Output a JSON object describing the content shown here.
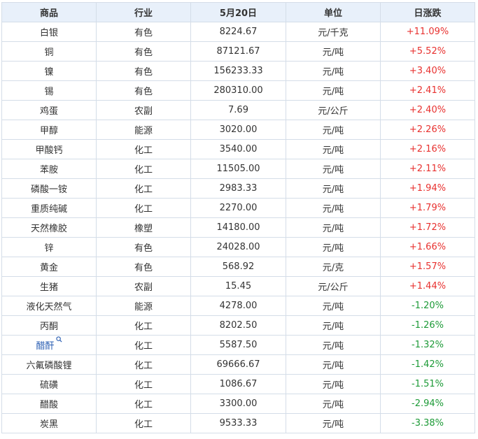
{
  "colors": {
    "up": "#e8312f",
    "down": "#1d9a37",
    "link": "#2b5fb3",
    "header_bg": "#e8f0fa",
    "border": "#d4dde8"
  },
  "table": {
    "headers": [
      "商品",
      "行业",
      "5月20日",
      "单位",
      "日涨跌"
    ],
    "rows": [
      {
        "name": "白银",
        "industry": "有色",
        "price": "8224.67",
        "unit": "元/千克",
        "change": "+11.09%"
      },
      {
        "name": "铜",
        "industry": "有色",
        "price": "87121.67",
        "unit": "元/吨",
        "change": "+5.52%"
      },
      {
        "name": "镍",
        "industry": "有色",
        "price": "156233.33",
        "unit": "元/吨",
        "change": "+3.40%"
      },
      {
        "name": "锡",
        "industry": "有色",
        "price": "280310.00",
        "unit": "元/吨",
        "change": "+2.41%"
      },
      {
        "name": "鸡蛋",
        "industry": "农副",
        "price": "7.69",
        "unit": "元/公斤",
        "change": "+2.40%"
      },
      {
        "name": "甲醇",
        "industry": "能源",
        "price": "3020.00",
        "unit": "元/吨",
        "change": "+2.26%"
      },
      {
        "name": "甲酸钙",
        "industry": "化工",
        "price": "3540.00",
        "unit": "元/吨",
        "change": "+2.16%"
      },
      {
        "name": "苯胺",
        "industry": "化工",
        "price": "11505.00",
        "unit": "元/吨",
        "change": "+2.11%"
      },
      {
        "name": "磷酸一铵",
        "industry": "化工",
        "price": "2983.33",
        "unit": "元/吨",
        "change": "+1.94%"
      },
      {
        "name": "重质纯碱",
        "industry": "化工",
        "price": "2270.00",
        "unit": "元/吨",
        "change": "+1.79%"
      },
      {
        "name": "天然橡胶",
        "industry": "橡塑",
        "price": "14180.00",
        "unit": "元/吨",
        "change": "+1.72%"
      },
      {
        "name": "锌",
        "industry": "有色",
        "price": "24028.00",
        "unit": "元/吨",
        "change": "+1.66%"
      },
      {
        "name": "黄金",
        "industry": "有色",
        "price": "568.92",
        "unit": "元/克",
        "change": "+1.57%"
      },
      {
        "name": "生猪",
        "industry": "农副",
        "price": "15.45",
        "unit": "元/公斤",
        "change": "+1.44%"
      },
      {
        "name": "液化天然气",
        "industry": "能源",
        "price": "4278.00",
        "unit": "元/吨",
        "change": "-1.20%"
      },
      {
        "name": "丙酮",
        "industry": "化工",
        "price": "8202.50",
        "unit": "元/吨",
        "change": "-1.26%"
      },
      {
        "name": "醋酐",
        "industry": "化工",
        "price": "5587.50",
        "unit": "元/吨",
        "change": "-1.32%",
        "link": true
      },
      {
        "name": "六氟磷酸锂",
        "industry": "化工",
        "price": "69666.67",
        "unit": "元/吨",
        "change": "-1.42%"
      },
      {
        "name": "硫磺",
        "industry": "化工",
        "price": "1086.67",
        "unit": "元/吨",
        "change": "-1.51%"
      },
      {
        "name": "醋酸",
        "industry": "化工",
        "price": "3300.00",
        "unit": "元/吨",
        "change": "-2.94%"
      },
      {
        "name": "炭黑",
        "industry": "化工",
        "price": "9533.33",
        "unit": "元/吨",
        "change": "-3.38%"
      }
    ]
  }
}
